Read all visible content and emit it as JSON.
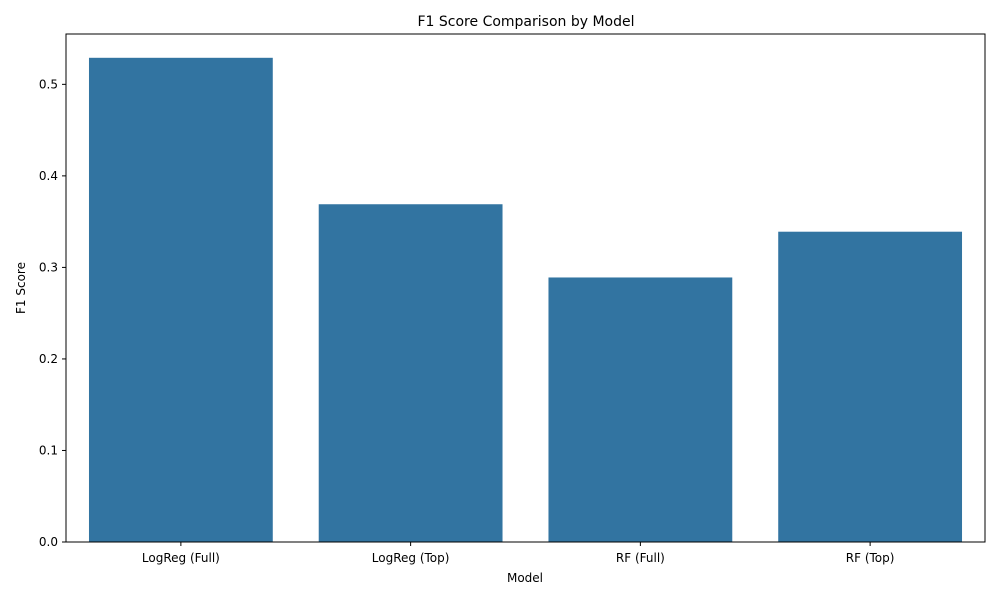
{
  "chart_data": {
    "type": "bar",
    "title": "F1 Score Comparison by Model",
    "xlabel": "Model",
    "ylabel": "F1 Score",
    "categories": [
      "LogReg (Full)",
      "LogReg (Top)",
      "RF (Full)",
      "RF (Top)"
    ],
    "values": [
      0.529,
      0.369,
      0.289,
      0.339
    ],
    "ylim": [
      0,
      0.555
    ],
    "yticks": [
      "0.0",
      "0.1",
      "0.2",
      "0.3",
      "0.4",
      "0.5"
    ],
    "bar_color": "#3274a1",
    "grid": false,
    "legend": "none"
  }
}
